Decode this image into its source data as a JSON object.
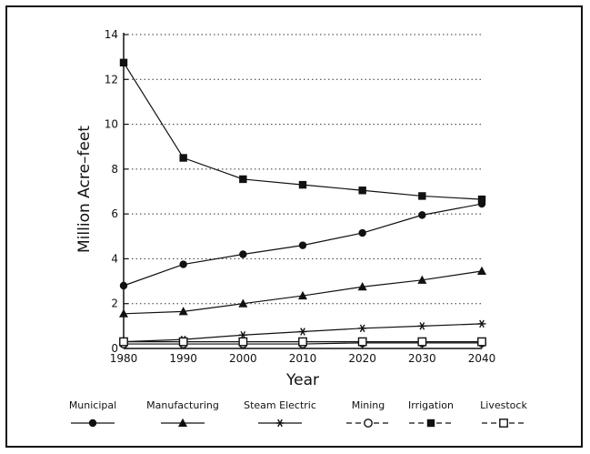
{
  "chart_data": {
    "type": "line",
    "title": "",
    "xlabel": "Year",
    "ylabel": "Million Acre–feet",
    "x": [
      1980,
      1990,
      2000,
      2010,
      2020,
      2030,
      2040
    ],
    "x_ticks": [
      "1980",
      "1990",
      "2000",
      "2010",
      "2020",
      "2030",
      "2040"
    ],
    "y_ticks": [
      "0",
      "2",
      "4",
      "6",
      "8",
      "10",
      "12",
      "14"
    ],
    "y_tick_values": [
      0,
      2,
      4,
      6,
      8,
      10,
      12,
      14
    ],
    "xlim": [
      1980,
      2040
    ],
    "ylim": [
      0,
      14
    ],
    "grid": "horizontal dotted",
    "legend_position": "bottom",
    "series": [
      {
        "name": "Municipal",
        "marker": "circle",
        "values": [
          2.8,
          3.75,
          4.2,
          4.6,
          5.15,
          5.95,
          6.45
        ]
      },
      {
        "name": "Manufacturing",
        "marker": "triangle",
        "values": [
          1.55,
          1.65,
          2.0,
          2.35,
          2.75,
          3.05,
          3.45
        ]
      },
      {
        "name": "Steam Electric",
        "marker": "star",
        "values": [
          0.3,
          0.4,
          0.6,
          0.75,
          0.9,
          1.0,
          1.1
        ]
      },
      {
        "name": "Mining",
        "marker": "open-circle",
        "values": [
          0.2,
          0.2,
          0.2,
          0.2,
          0.25,
          0.25,
          0.25
        ]
      },
      {
        "name": "Irrigation",
        "marker": "square",
        "values": [
          12.75,
          8.5,
          7.55,
          7.3,
          7.05,
          6.8,
          6.65
        ]
      },
      {
        "name": "Livestock",
        "marker": "open-square",
        "values": [
          0.3,
          0.3,
          0.3,
          0.3,
          0.3,
          0.3,
          0.3
        ]
      }
    ],
    "colors": {
      "line": "#111111",
      "grid": "#333333"
    }
  }
}
